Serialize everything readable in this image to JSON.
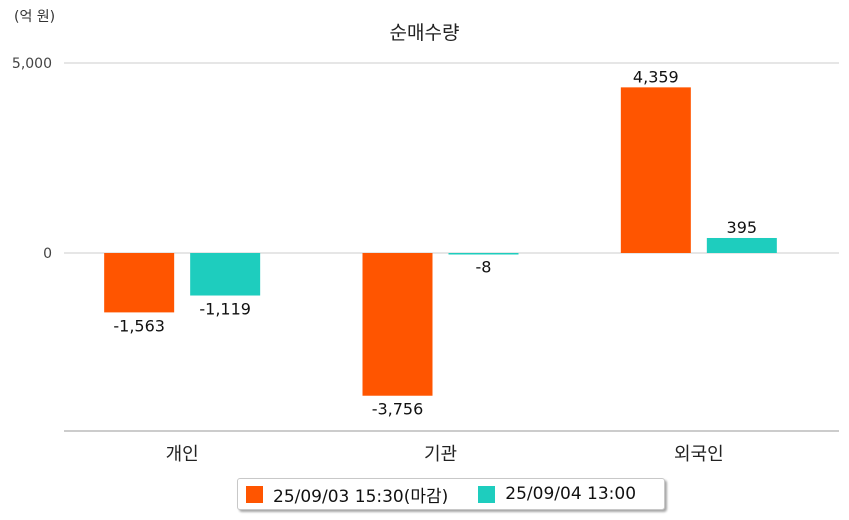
{
  "unit_label": "(억 원)",
  "chart_data": {
    "type": "bar",
    "title": "순매수량",
    "categories": [
      "개인",
      "기관",
      "외국인"
    ],
    "series": [
      {
        "name": "25/09/03 15:30(마감)",
        "color": "#ff5500",
        "values": [
          -1563,
          -3756,
          4359
        ]
      },
      {
        "name": "25/09/04 13:00",
        "color": "#1ecdbe",
        "values": [
          -1119,
          -8,
          395
        ]
      }
    ],
    "data_labels": [
      [
        "-1,563",
        "-3,756",
        "4,359"
      ],
      [
        "-1,119",
        "-8",
        "395"
      ]
    ],
    "yticks": [
      {
        "value": 5000,
        "label": "5,000"
      },
      {
        "value": 0,
        "label": "0"
      }
    ],
    "ylim": [
      -4500,
      5000
    ],
    "grid": true,
    "legend_position": "bottom"
  }
}
